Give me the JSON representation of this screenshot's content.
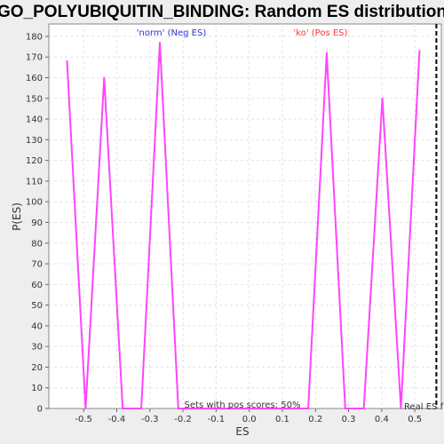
{
  "chart_data": {
    "type": "line",
    "title": "GO_POLYUBIQUITIN_BINDING: Random ES distribution",
    "xlabel": "ES",
    "ylabel": "P(ES)",
    "xlim": [
      -0.605,
      0.58
    ],
    "ylim": [
      0,
      186
    ],
    "x_ticks": [
      "-0.5",
      "-0.4",
      "-0.3",
      "-0.2",
      "-0.1",
      "0.0",
      "0.1",
      "0.2",
      "0.3",
      "0.4",
      "0.5"
    ],
    "y_ticks": [
      "0",
      "10",
      "20",
      "30",
      "40",
      "50",
      "60",
      "70",
      "80",
      "90",
      "100",
      "110",
      "120",
      "130",
      "140",
      "150",
      "160",
      "170",
      "180"
    ],
    "grid": true,
    "series": [
      {
        "color": "#ff44ff",
        "x": [
          -0.55,
          -0.494,
          -0.438,
          -0.382,
          -0.326,
          -0.27,
          -0.214,
          -0.158,
          -0.102,
          -0.046,
          0.01,
          0.066,
          0.122,
          0.178,
          0.234,
          0.29,
          0.346,
          0.402,
          0.458,
          0.514
        ],
        "y": [
          168,
          0,
          160,
          0,
          0,
          177,
          0,
          0,
          0,
          0,
          0,
          0,
          0,
          0,
          172,
          0,
          0,
          150,
          0,
          173
        ]
      }
    ],
    "real_es": 0.565,
    "annotations": {
      "neg_label": "'norm' (Neg ES)",
      "pos_label": "'ko' (Pos ES)",
      "pos_scores": "Sets with pos scores: 50%",
      "real_es_label": "Real ES f"
    },
    "colors": {
      "neg": "#3333cc",
      "pos": "#ff3333",
      "line": "#ff44ff",
      "real": "#000000"
    }
  }
}
